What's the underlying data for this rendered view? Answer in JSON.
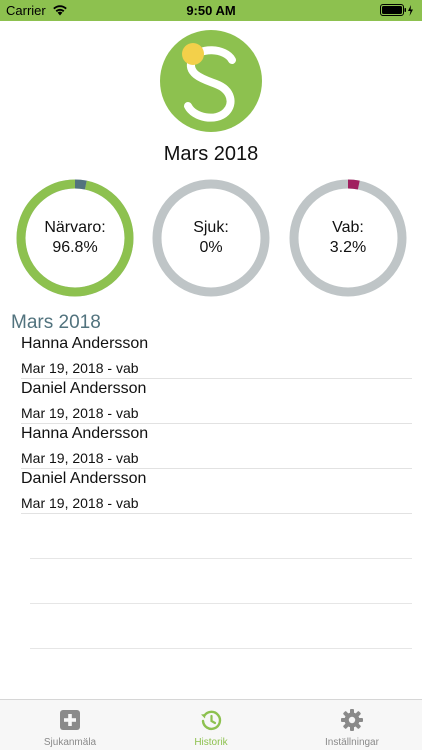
{
  "status_bar": {
    "carrier": "Carrier",
    "time": "9:50 AM"
  },
  "colors": {
    "accent": "#8dc14f",
    "ring_track": "#bfc5c7",
    "sjuk_marker": "#52737e",
    "vab_marker": "#a0205f",
    "logo_dot": "#f3d04a"
  },
  "header": {
    "title": "Mars 2018"
  },
  "stats": [
    {
      "label": "Närvaro:",
      "value": "96.8%",
      "fraction": 0.968
    },
    {
      "label": "Sjuk:",
      "value": "0%",
      "fraction": 0.0
    },
    {
      "label": "Vab:",
      "value": "3.2%",
      "fraction": 0.032
    }
  ],
  "history": {
    "section_title": "Mars 2018",
    "items": [
      {
        "name": "Hanna Andersson",
        "detail": "Mar 19, 2018 - vab"
      },
      {
        "name": "Daniel Andersson",
        "detail": "Mar 19, 2018 - vab"
      },
      {
        "name": "Hanna Andersson",
        "detail": "Mar 19, 2018 - vab"
      },
      {
        "name": "Daniel Andersson",
        "detail": "Mar 19, 2018 - vab"
      }
    ]
  },
  "tabs": [
    {
      "label": "Sjukanmäla",
      "icon": "plus-square-icon"
    },
    {
      "label": "Historik",
      "icon": "history-icon",
      "active": true
    },
    {
      "label": "Inställningar",
      "icon": "gear-icon"
    }
  ]
}
